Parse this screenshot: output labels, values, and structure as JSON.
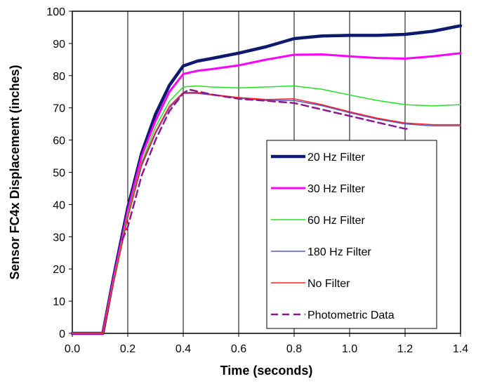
{
  "chart_data": {
    "type": "line",
    "title": "",
    "xlabel": "Time (seconds)",
    "ylabel": "Sensor FC4x Displacement (inches)",
    "xlim": [
      0.0,
      1.4
    ],
    "ylim": [
      0,
      100
    ],
    "x_ticks": [
      "0.0",
      "0.2",
      "0.4",
      "0.6",
      "0.8",
      "1.0",
      "1.2",
      "1.4"
    ],
    "y_ticks": [
      "0",
      "10",
      "20",
      "30",
      "40",
      "50",
      "60",
      "70",
      "80",
      "90",
      "100"
    ],
    "grid": "vertical",
    "legend_position": "lower-right",
    "series": [
      {
        "name": "20 Hz Filter",
        "color": "#0d1a6e",
        "style": "solid-thick",
        "x": [
          0.0,
          0.11,
          0.15,
          0.2,
          0.25,
          0.3,
          0.35,
          0.4,
          0.45,
          0.5,
          0.6,
          0.7,
          0.8,
          0.9,
          1.0,
          1.1,
          1.2,
          1.3,
          1.4
        ],
        "y": [
          0,
          0,
          18,
          39,
          56,
          68,
          77,
          83,
          84.5,
          85.3,
          87,
          89,
          91.5,
          92.3,
          92.5,
          92.5,
          92.8,
          93.8,
          95.5
        ]
      },
      {
        "name": "30 Hz Filter",
        "color": "#ff00ff",
        "style": "solid-medium",
        "x": [
          0.0,
          0.11,
          0.15,
          0.2,
          0.25,
          0.3,
          0.35,
          0.4,
          0.45,
          0.5,
          0.6,
          0.7,
          0.8,
          0.9,
          1.0,
          1.1,
          1.2,
          1.3,
          1.4
        ],
        "y": [
          0,
          0,
          17.5,
          38,
          55,
          66,
          75,
          80.5,
          81.5,
          82,
          83.2,
          85,
          86.5,
          86.6,
          86,
          85.5,
          85.3,
          86,
          87
        ]
      },
      {
        "name": "60 Hz Filter",
        "color": "#22e022",
        "style": "solid-thin",
        "x": [
          0.0,
          0.11,
          0.15,
          0.2,
          0.25,
          0.3,
          0.35,
          0.4,
          0.45,
          0.5,
          0.6,
          0.7,
          0.8,
          0.9,
          1.0,
          1.1,
          1.2,
          1.3,
          1.4
        ],
        "y": [
          0,
          0,
          17,
          37,
          53,
          64,
          72,
          76.5,
          76.8,
          76.5,
          76.2,
          76.5,
          76.8,
          75.8,
          74,
          72.3,
          71,
          70.6,
          71
        ]
      },
      {
        "name": "180 Hz Filter",
        "color": "#5555dd",
        "style": "solid-thin",
        "x": [
          0.0,
          0.11,
          0.15,
          0.2,
          0.25,
          0.3,
          0.35,
          0.4,
          0.45,
          0.5,
          0.6,
          0.7,
          0.8,
          0.9,
          1.0,
          1.1,
          1.2,
          1.3,
          1.4
        ],
        "y": [
          0,
          0,
          16,
          36,
          52,
          62,
          70,
          74.5,
          74.5,
          74,
          73,
          72.3,
          72.3,
          70.7,
          68.5,
          66.5,
          65,
          64.4,
          64.4
        ]
      },
      {
        "name": "No Filter",
        "color": "#ff2020",
        "style": "solid-thin",
        "x": [
          0.0,
          0.11,
          0.15,
          0.2,
          0.25,
          0.3,
          0.35,
          0.4,
          0.45,
          0.5,
          0.6,
          0.7,
          0.8,
          0.9,
          1.0,
          1.1,
          1.2,
          1.3,
          1.4
        ],
        "y": [
          0,
          0,
          16.5,
          36,
          52.5,
          62.5,
          70.5,
          74.8,
          74.8,
          74.2,
          73.2,
          72.6,
          72.8,
          71,
          68.8,
          66.8,
          65.3,
          64.8,
          64.8
        ]
      },
      {
        "name": "Photometric Data",
        "color": "#8b1a8b",
        "style": "dashed",
        "x": [
          0.18,
          0.2,
          0.25,
          0.3,
          0.35,
          0.4,
          0.42,
          0.5,
          0.6,
          0.7,
          0.8,
          0.9,
          1.0,
          1.1,
          1.2,
          1.22
        ],
        "y": [
          29,
          33,
          49,
          60,
          69,
          74.5,
          75.7,
          74.2,
          72.8,
          72.2,
          71.5,
          69.5,
          67.5,
          65.5,
          63.5,
          63.5
        ]
      }
    ]
  }
}
